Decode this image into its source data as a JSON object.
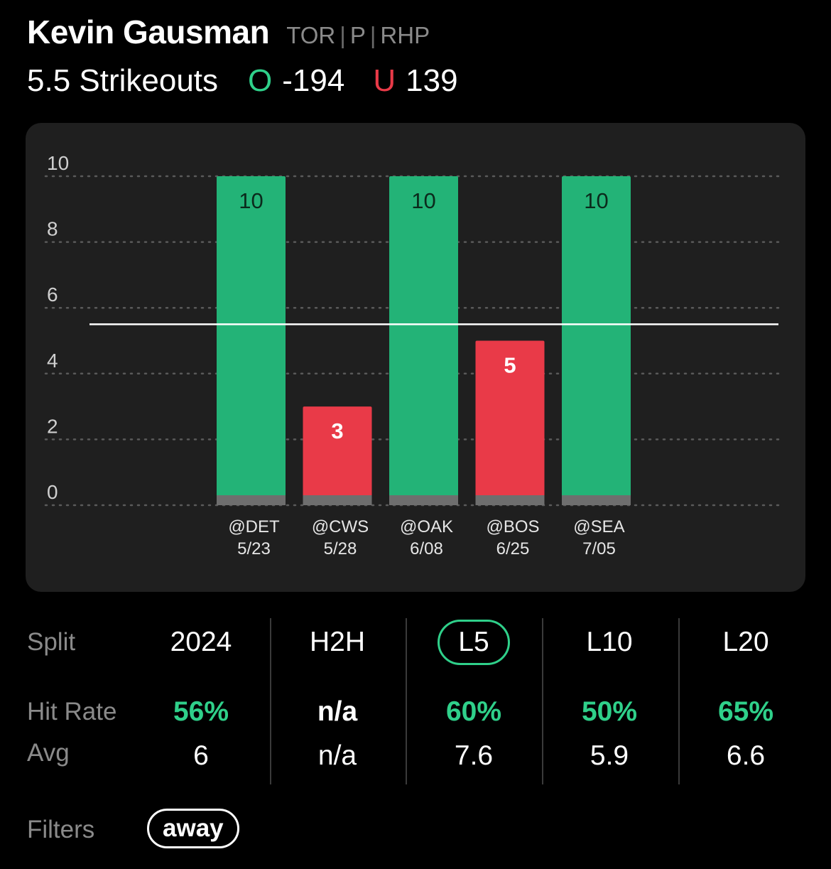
{
  "player": {
    "name": "Kevin Gausman",
    "team": "TOR",
    "position": "P",
    "hand": "RHP"
  },
  "prop": {
    "line_label": "5.5 Strikeouts",
    "over_letter": "O",
    "over_odds": "-194",
    "under_letter": "U",
    "under_odds": "139"
  },
  "colors": {
    "over": "#23b377",
    "under": "#e93a48",
    "hit_text": "#2fd08a",
    "card_bg": "#1f1f1f",
    "base_strip": "#6e6e6e"
  },
  "chart_data": {
    "type": "bar",
    "categories": [
      "@DET 5/23",
      "@CWS 5/28",
      "@OAK 6/08",
      "@BOS 6/25",
      "@SEA 7/05"
    ],
    "opponents": [
      "@DET",
      "@CWS",
      "@OAK",
      "@BOS",
      "@SEA"
    ],
    "dates": [
      "5/23",
      "5/28",
      "6/08",
      "6/25",
      "7/05"
    ],
    "values": [
      10,
      3,
      10,
      5,
      10
    ],
    "line": 5.5,
    "ylim": [
      0,
      10
    ],
    "yticks": [
      0,
      2,
      4,
      6,
      8,
      10
    ],
    "grid": true,
    "title": "",
    "xlabel": "",
    "ylabel": ""
  },
  "splits": {
    "label": "Split",
    "hit_rate_label": "Hit Rate",
    "avg_label": "Avg",
    "columns": [
      {
        "name": "2024",
        "hit_rate": "56%",
        "avg": "6",
        "active": false,
        "hit_color": "green"
      },
      {
        "name": "H2H",
        "hit_rate": "n/a",
        "avg": "n/a",
        "active": false,
        "hit_color": "white"
      },
      {
        "name": "L5",
        "hit_rate": "60%",
        "avg": "7.6",
        "active": true,
        "hit_color": "green"
      },
      {
        "name": "L10",
        "hit_rate": "50%",
        "avg": "5.9",
        "active": false,
        "hit_color": "green"
      },
      {
        "name": "L20",
        "hit_rate": "65%",
        "avg": "6.6",
        "active": false,
        "hit_color": "green"
      }
    ]
  },
  "filters": {
    "label": "Filters",
    "active_filter": "away"
  }
}
